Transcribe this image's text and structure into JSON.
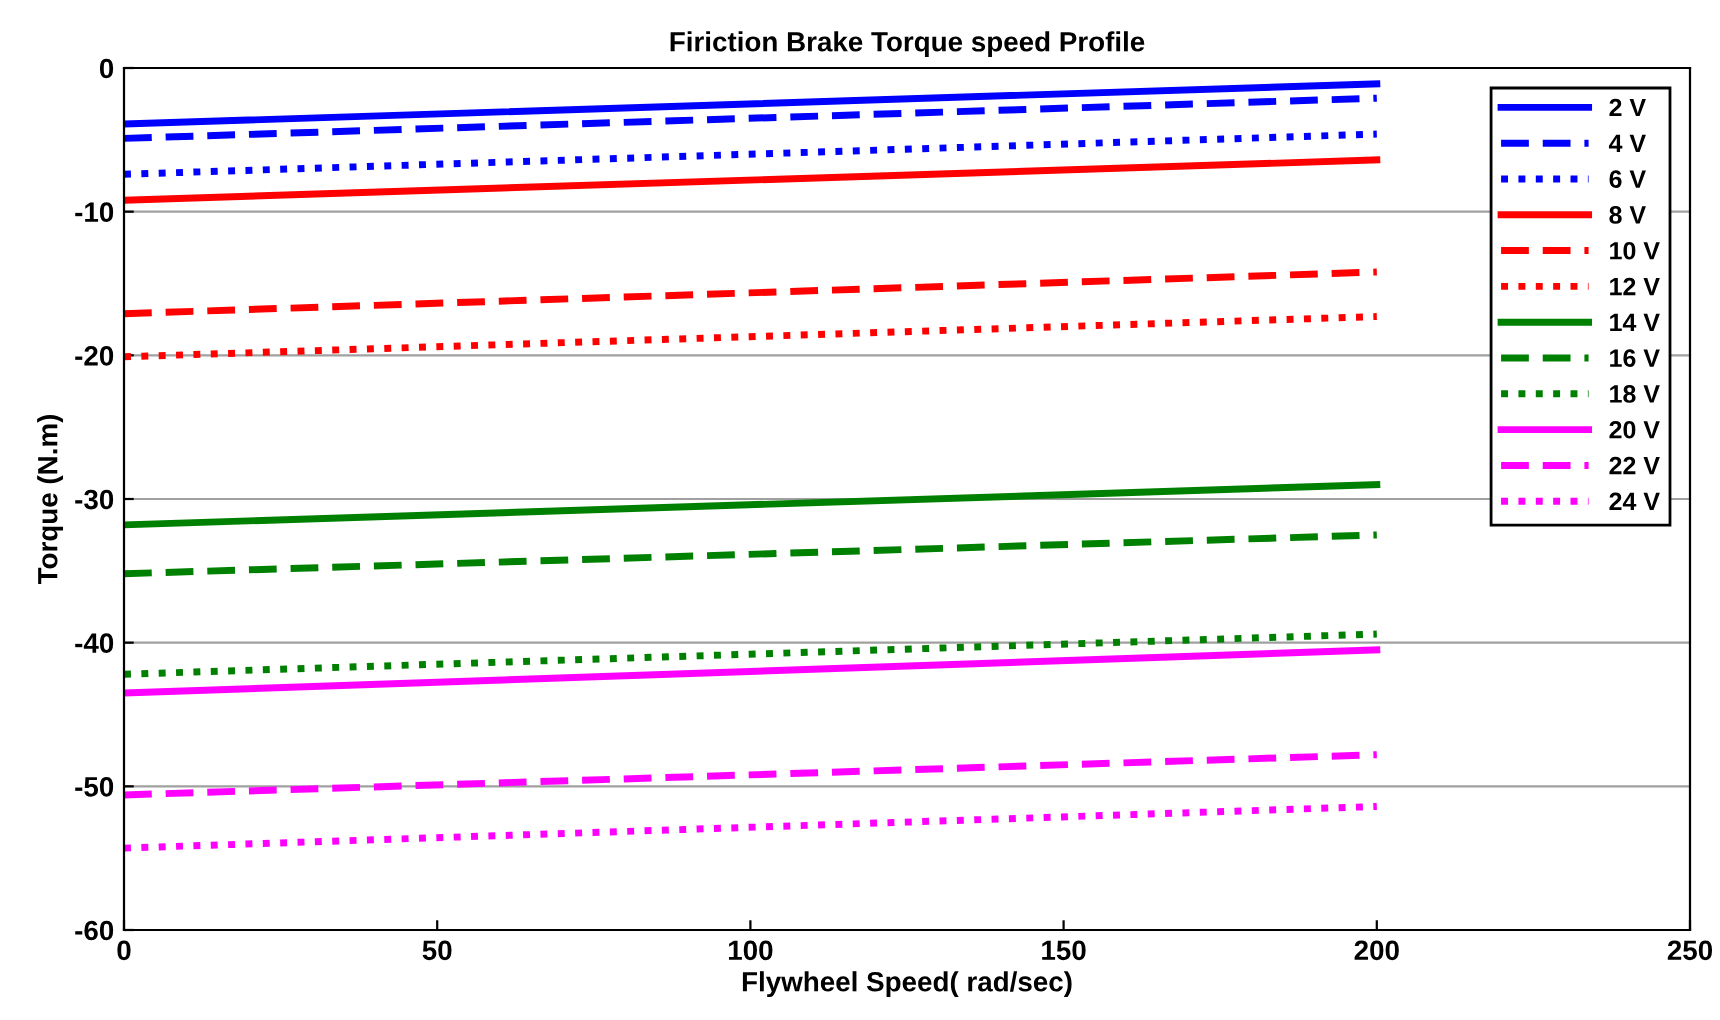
{
  "chart_data": {
    "type": "line",
    "title": "Firiction Brake Torque speed Profile",
    "xlabel": "Flywheel Speed( rad/sec)",
    "ylabel": "Torque (N.m)",
    "xlim": [
      0,
      250
    ],
    "xticks": [
      0,
      50,
      100,
      150,
      200,
      250
    ],
    "ylim": [
      -60,
      0
    ],
    "yticks": [
      -60,
      -50,
      -40,
      -30,
      -20,
      -10,
      0
    ],
    "grid": "y",
    "legend": "top right",
    "x": [
      0,
      200
    ],
    "series": [
      {
        "name": "2 V",
        "color": "#0000ff",
        "line_style": "solid",
        "values": [
          -3.9,
          -1.1
        ]
      },
      {
        "name": "4 V",
        "color": "#0000ff",
        "line_style": "dashed",
        "values": [
          -4.9,
          -2.1
        ]
      },
      {
        "name": "6 V",
        "color": "#0000ff",
        "line_style": "dotted",
        "values": [
          -7.4,
          -4.6
        ]
      },
      {
        "name": "8 V",
        "color": "#ff0000",
        "line_style": "solid",
        "values": [
          -9.2,
          -6.4
        ]
      },
      {
        "name": "10 V",
        "color": "#ff0000",
        "line_style": "dashed",
        "values": [
          -17.1,
          -14.2
        ]
      },
      {
        "name": "12 V",
        "color": "#ff0000",
        "line_style": "dotted",
        "values": [
          -20.1,
          -17.3
        ]
      },
      {
        "name": "14 V",
        "color": "#008000",
        "line_style": "solid",
        "values": [
          -31.8,
          -29.0
        ]
      },
      {
        "name": "16 V",
        "color": "#008000",
        "line_style": "dashed",
        "values": [
          -35.2,
          -32.5
        ]
      },
      {
        "name": "18 V",
        "color": "#008000",
        "line_style": "dotted",
        "values": [
          -42.2,
          -39.4
        ]
      },
      {
        "name": "20 V",
        "color": "#ff00ff",
        "line_style": "solid",
        "values": [
          -43.5,
          -40.5
        ]
      },
      {
        "name": "22 V",
        "color": "#ff00ff",
        "line_style": "dashed",
        "values": [
          -50.6,
          -47.8
        ]
      },
      {
        "name": "24 V",
        "color": "#ff00ff",
        "line_style": "dotted",
        "values": [
          -54.3,
          -51.4
        ]
      }
    ]
  }
}
